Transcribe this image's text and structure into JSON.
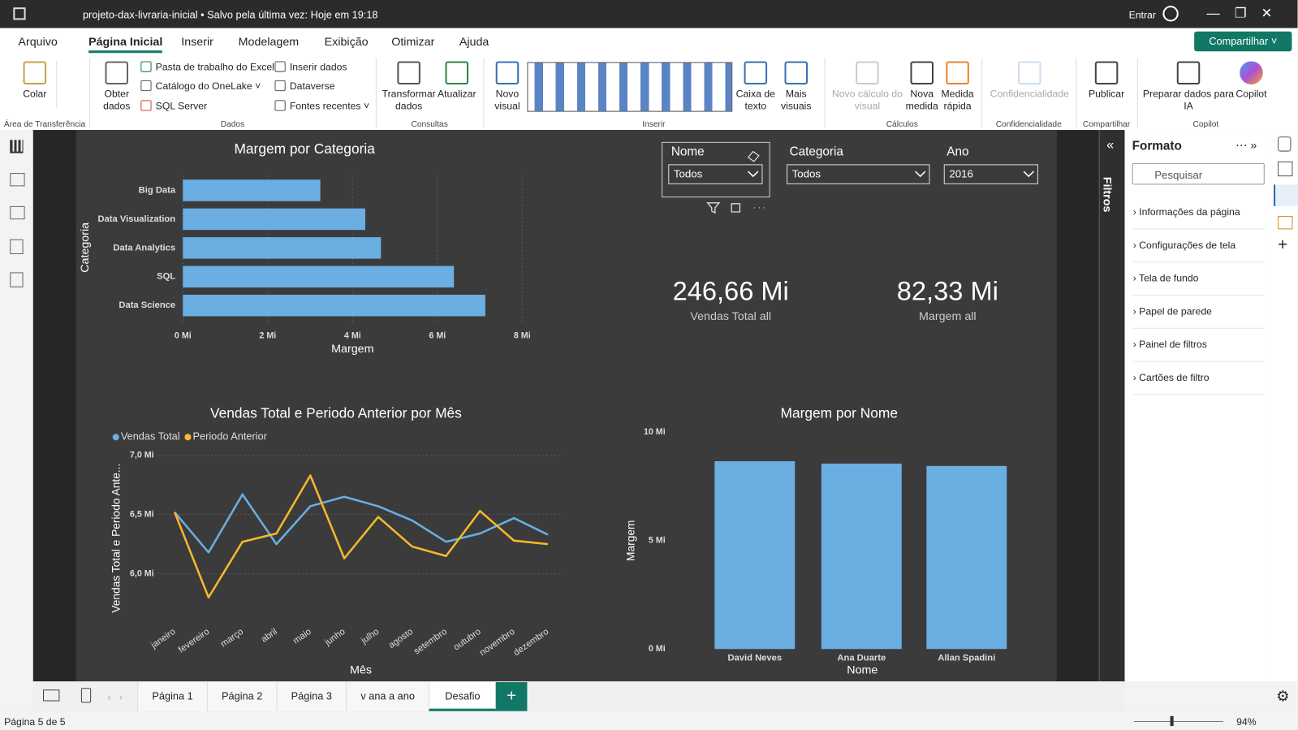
{
  "title_bar": {
    "file_status": "projeto-dax-livraria-inicial • Salvo pela última vez: Hoje em 19:18",
    "sign_in": "Entrar"
  },
  "menu": {
    "tabs": [
      "Arquivo",
      "Página Inicial",
      "Inserir",
      "Modelagem",
      "Exibição",
      "Otimizar",
      "Ajuda"
    ],
    "active": 1,
    "share": "Compartilhar"
  },
  "ribbon": {
    "clipboard": {
      "label": "Área de Transferência",
      "paste": "Colar"
    },
    "data": {
      "label": "Dados",
      "get_data": "Obter dados",
      "items": [
        "Pasta de trabalho do Excel",
        "Catálogo do OneLake",
        "SQL Server",
        "Inserir dados",
        "Dataverse",
        "Fontes recentes"
      ]
    },
    "queries": {
      "label": "Consultas",
      "buttons": [
        "Transformar dados",
        "Atualizar"
      ]
    },
    "insert": {
      "label": "Inserir",
      "buttons": [
        "Novo visual",
        "Caixa de texto",
        "Mais visuais"
      ]
    },
    "calculations": {
      "label": "Cálculos",
      "buttons": [
        "Novo cálculo do visual",
        "Nova medida",
        "Medida rápida"
      ]
    },
    "sensitivity": {
      "label": "Confidencialidade",
      "button": "Confidencialidade"
    },
    "share": {
      "label": "Compartilhar",
      "button": "Publicar"
    },
    "copilot": {
      "label": "Copilot",
      "buttons": [
        "Preparar dados para IA",
        "Copilot"
      ]
    }
  },
  "slicers": [
    {
      "title": "Nome",
      "value": "Todos"
    },
    {
      "title": "Categoria",
      "value": "Todos"
    },
    {
      "title": "Ano",
      "value": "2016"
    }
  ],
  "cards": [
    {
      "value": "246,66 Mi",
      "label": "Vendas Total all"
    },
    {
      "value": "82,33 Mi",
      "label": "Margem all"
    }
  ],
  "chart_data": [
    {
      "type": "bar",
      "orientation": "horizontal",
      "title": "Margem por Categoria",
      "x_label": "Margem",
      "y_label": "Categoria",
      "categories": [
        "Big Data",
        "Data Visualization",
        "Data Analytics",
        "SQL",
        "Data Science"
      ],
      "values": [
        3.24,
        4.3,
        4.67,
        6.39,
        7.13
      ],
      "color": "#6aaee2",
      "xlim": [
        0,
        8
      ],
      "xticks": [
        {
          "value": 0,
          "label": "0 Mi"
        },
        {
          "value": 2,
          "label": "2 Mi"
        },
        {
          "value": 4,
          "label": "4 Mi"
        },
        {
          "value": 6,
          "label": "6 Mi"
        },
        {
          "value": 8,
          "label": "8 Mi"
        }
      ],
      "grid": true
    },
    {
      "type": "line",
      "title": "Vendas Total e Periodo Anterior por Mês",
      "x_label": "Mês",
      "y_label": "Vendas Total e Periodo Ante...",
      "categories": [
        "janeiro",
        "fevereiro",
        "março",
        "abril",
        "maio",
        "junho",
        "julho",
        "agosto",
        "setembro",
        "outubro",
        "novembro",
        "dezembro"
      ],
      "series": [
        {
          "name": "Vendas Total",
          "color": "#6aaee2",
          "values": [
            6.52,
            6.18,
            6.67,
            6.25,
            6.57,
            6.65,
            6.57,
            6.45,
            6.27,
            6.34,
            6.47,
            6.33
          ]
        },
        {
          "name": "Periodo Anterior",
          "color": "#f5b82e",
          "values": [
            6.52,
            5.8,
            6.27,
            6.34,
            6.83,
            6.13,
            6.48,
            6.23,
            6.15,
            6.53,
            6.28,
            6.25
          ]
        }
      ],
      "ylim": [
        5.7,
        7.0
      ],
      "yticks": [
        {
          "value": 6,
          "label": "6,0 Mi"
        },
        {
          "value": 6.5,
          "label": "6,5 Mi"
        },
        {
          "value": 7,
          "label": "7,0 Mi"
        }
      ],
      "grid": true
    },
    {
      "type": "bar",
      "orientation": "vertical",
      "title": "Margem por Nome",
      "x_label": "Nome",
      "y_label": "Margem",
      "categories": [
        "David Neves",
        "Ana Duarte",
        "Allan Spadini"
      ],
      "values": [
        8.66,
        8.55,
        8.44
      ],
      "color": "#6aaee2",
      "ylim": [
        0,
        10
      ],
      "yticks": [
        {
          "value": 0,
          "label": "0 Mi"
        },
        {
          "value": 5,
          "label": "5 Mi"
        },
        {
          "value": 10,
          "label": "10 Mi"
        }
      ],
      "grid": false
    }
  ],
  "filters_pane": {
    "title": "Filtros"
  },
  "format_pane": {
    "title": "Formato",
    "search": "Pesquisar",
    "sections": [
      "Informações da página",
      "Configurações de tela",
      "Tela de fundo",
      "Papel de parede",
      "Painel de filtros",
      "Cartões de filtro"
    ]
  },
  "page_tabs": {
    "tabs": [
      "Página 1",
      "Página 2",
      "Página 3",
      "v ana a ano",
      "Desafio"
    ],
    "active": 4
  },
  "status_bar": {
    "page": "Página 5 de 5",
    "zoom": "94%"
  }
}
